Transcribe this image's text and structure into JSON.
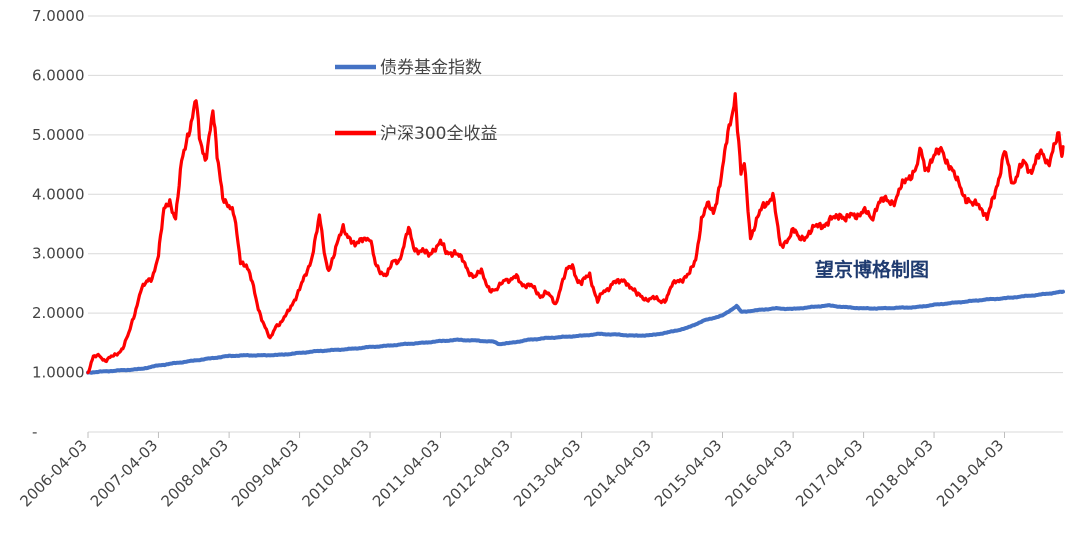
{
  "chart_data": {
    "type": "line",
    "title": "",
    "xlabel": "",
    "ylabel": "",
    "ylim": [
      0,
      7
    ],
    "y_ticks": [
      {
        "value": 0,
        "label": "-"
      },
      {
        "value": 1,
        "label": "1.0000"
      },
      {
        "value": 2,
        "label": "2.0000"
      },
      {
        "value": 3,
        "label": "3.0000"
      },
      {
        "value": 4,
        "label": "4.0000"
      },
      {
        "value": 5,
        "label": "5.0000"
      },
      {
        "value": 6,
        "label": "6.0000"
      },
      {
        "value": 7,
        "label": "7.0000"
      }
    ],
    "x_range": [
      "2006-04-03",
      "2020-01-31"
    ],
    "x_ticks": [
      "2006-04-03",
      "2007-04-03",
      "2008-04-03",
      "2009-04-03",
      "2010-04-03",
      "2011-04-03",
      "2012-04-03",
      "2013-04-03",
      "2014-04-03",
      "2015-04-03",
      "2016-04-03",
      "2017-04-03",
      "2018-04-03",
      "2019-04-03"
    ],
    "grid": true,
    "legend_position": "top-left",
    "annotation": "望京博格制图",
    "series": [
      {
        "name": "债券基金指数",
        "color": "#4472c4",
        "points": [
          [
            "2006-04-03",
            1.0
          ],
          [
            "2006-07-01",
            1.02
          ],
          [
            "2006-10-01",
            1.04
          ],
          [
            "2007-01-01",
            1.06
          ],
          [
            "2007-04-03",
            1.12
          ],
          [
            "2007-07-01",
            1.16
          ],
          [
            "2007-10-01",
            1.2
          ],
          [
            "2008-01-01",
            1.24
          ],
          [
            "2008-04-03",
            1.28
          ],
          [
            "2008-07-01",
            1.29
          ],
          [
            "2008-10-01",
            1.29
          ],
          [
            "2009-01-01",
            1.3
          ],
          [
            "2009-04-03",
            1.33
          ],
          [
            "2009-07-01",
            1.36
          ],
          [
            "2009-10-01",
            1.38
          ],
          [
            "2010-01-01",
            1.4
          ],
          [
            "2010-04-03",
            1.43
          ],
          [
            "2010-07-01",
            1.45
          ],
          [
            "2010-10-01",
            1.48
          ],
          [
            "2011-01-01",
            1.5
          ],
          [
            "2011-04-03",
            1.53
          ],
          [
            "2011-07-01",
            1.55
          ],
          [
            "2011-10-01",
            1.54
          ],
          [
            "2012-01-01",
            1.52
          ],
          [
            "2012-02-01",
            1.48
          ],
          [
            "2012-04-03",
            1.5
          ],
          [
            "2012-07-01",
            1.55
          ],
          [
            "2012-10-01",
            1.58
          ],
          [
            "2013-01-01",
            1.6
          ],
          [
            "2013-04-03",
            1.62
          ],
          [
            "2013-07-01",
            1.65
          ],
          [
            "2013-10-01",
            1.64
          ],
          [
            "2014-01-01",
            1.62
          ],
          [
            "2014-04-03",
            1.63
          ],
          [
            "2014-07-01",
            1.68
          ],
          [
            "2014-10-01",
            1.75
          ],
          [
            "2015-01-01",
            1.88
          ],
          [
            "2015-04-03",
            1.96
          ],
          [
            "2015-05-15",
            2.05
          ],
          [
            "2015-06-15",
            2.12
          ],
          [
            "2015-07-10",
            2.02
          ],
          [
            "2015-10-01",
            2.05
          ],
          [
            "2016-01-01",
            2.08
          ],
          [
            "2016-04-03",
            2.07
          ],
          [
            "2016-07-01",
            2.1
          ],
          [
            "2016-10-01",
            2.13
          ],
          [
            "2017-01-01",
            2.1
          ],
          [
            "2017-04-03",
            2.08
          ],
          [
            "2017-07-01",
            2.08
          ],
          [
            "2017-10-01",
            2.09
          ],
          [
            "2018-01-01",
            2.1
          ],
          [
            "2018-04-03",
            2.14
          ],
          [
            "2018-07-01",
            2.17
          ],
          [
            "2018-10-01",
            2.2
          ],
          [
            "2019-01-01",
            2.23
          ],
          [
            "2019-04-03",
            2.25
          ],
          [
            "2019-07-01",
            2.28
          ],
          [
            "2019-10-01",
            2.31
          ],
          [
            "2020-01-31",
            2.36
          ]
        ]
      },
      {
        "name": "沪深300全收益",
        "color": "#ff0000",
        "points": [
          [
            "2006-04-03",
            1.0
          ],
          [
            "2006-05-01",
            1.25
          ],
          [
            "2006-06-01",
            1.3
          ],
          [
            "2006-07-01",
            1.2
          ],
          [
            "2006-08-01",
            1.25
          ],
          [
            "2006-09-01",
            1.32
          ],
          [
            "2006-10-01",
            1.42
          ],
          [
            "2006-11-01",
            1.65
          ],
          [
            "2006-12-01",
            2.0
          ],
          [
            "2007-01-01",
            2.4
          ],
          [
            "2007-02-01",
            2.5
          ],
          [
            "2007-03-01",
            2.6
          ],
          [
            "2007-04-03",
            3.0
          ],
          [
            "2007-05-01",
            3.7
          ],
          [
            "2007-06-01",
            3.9
          ],
          [
            "2007-07-01",
            3.6
          ],
          [
            "2007-08-01",
            4.5
          ],
          [
            "2007-09-01",
            5.0
          ],
          [
            "2007-10-15",
            5.6
          ],
          [
            "2007-11-01",
            4.9
          ],
          [
            "2007-12-01",
            4.6
          ],
          [
            "2008-01-10",
            5.4
          ],
          [
            "2008-02-01",
            4.6
          ],
          [
            "2008-03-01",
            4.0
          ],
          [
            "2008-04-03",
            3.8
          ],
          [
            "2008-05-01",
            3.6
          ],
          [
            "2008-06-01",
            2.9
          ],
          [
            "2008-07-01",
            2.8
          ],
          [
            "2008-08-01",
            2.5
          ],
          [
            "2008-09-01",
            2.1
          ],
          [
            "2008-10-01",
            1.8
          ],
          [
            "2008-11-01",
            1.55
          ],
          [
            "2008-12-01",
            1.8
          ],
          [
            "2009-01-01",
            1.85
          ],
          [
            "2009-02-01",
            2.0
          ],
          [
            "2009-03-01",
            2.2
          ],
          [
            "2009-04-03",
            2.4
          ],
          [
            "2009-05-01",
            2.6
          ],
          [
            "2009-06-01",
            2.9
          ],
          [
            "2009-07-15",
            3.6
          ],
          [
            "2009-08-15",
            2.9
          ],
          [
            "2009-09-01",
            2.75
          ],
          [
            "2009-10-01",
            3.0
          ],
          [
            "2009-11-15",
            3.45
          ],
          [
            "2009-12-15",
            3.3
          ],
          [
            "2010-01-15",
            3.1
          ],
          [
            "2010-03-01",
            3.3
          ],
          [
            "2010-04-03",
            3.25
          ],
          [
            "2010-05-01",
            2.8
          ],
          [
            "2010-06-01",
            2.7
          ],
          [
            "2010-07-01",
            2.65
          ],
          [
            "2010-08-01",
            2.85
          ],
          [
            "2010-09-01",
            2.9
          ],
          [
            "2010-10-20",
            3.4
          ],
          [
            "2010-11-15",
            3.1
          ],
          [
            "2011-01-01",
            3.05
          ],
          [
            "2011-02-01",
            2.95
          ],
          [
            "2011-03-01",
            3.1
          ],
          [
            "2011-04-03",
            3.2
          ],
          [
            "2011-05-01",
            3.0
          ],
          [
            "2011-06-15",
            3.05
          ],
          [
            "2011-08-01",
            2.85
          ],
          [
            "2011-09-01",
            2.7
          ],
          [
            "2011-10-01",
            2.6
          ],
          [
            "2011-11-01",
            2.7
          ],
          [
            "2011-12-15",
            2.4
          ],
          [
            "2012-01-15",
            2.35
          ],
          [
            "2012-03-01",
            2.6
          ],
          [
            "2012-04-03",
            2.55
          ],
          [
            "2012-05-01",
            2.6
          ],
          [
            "2012-06-01",
            2.5
          ],
          [
            "2012-07-15",
            2.45
          ],
          [
            "2012-09-01",
            2.3
          ],
          [
            "2012-10-01",
            2.35
          ],
          [
            "2012-11-20",
            2.15
          ],
          [
            "2012-12-15",
            2.45
          ],
          [
            "2013-01-15",
            2.7
          ],
          [
            "2013-02-15",
            2.8
          ],
          [
            "2013-03-15",
            2.55
          ],
          [
            "2013-04-03",
            2.5
          ],
          [
            "2013-05-15",
            2.65
          ],
          [
            "2013-06-25",
            2.2
          ],
          [
            "2013-07-15",
            2.3
          ],
          [
            "2013-08-15",
            2.4
          ],
          [
            "2013-09-15",
            2.55
          ],
          [
            "2013-10-15",
            2.5
          ],
          [
            "2013-11-15",
            2.55
          ],
          [
            "2013-12-15",
            2.45
          ],
          [
            "2014-01-15",
            2.3
          ],
          [
            "2014-03-01",
            2.25
          ],
          [
            "2014-04-03",
            2.25
          ],
          [
            "2014-05-15",
            2.2
          ],
          [
            "2014-06-15",
            2.25
          ],
          [
            "2014-07-15",
            2.45
          ],
          [
            "2014-08-15",
            2.55
          ],
          [
            "2014-09-15",
            2.6
          ],
          [
            "2014-10-15",
            2.65
          ],
          [
            "2014-11-15",
            2.9
          ],
          [
            "2014-12-15",
            3.6
          ],
          [
            "2015-01-15",
            3.8
          ],
          [
            "2015-02-15",
            3.7
          ],
          [
            "2015-03-15",
            4.1
          ],
          [
            "2015-04-03",
            4.4
          ],
          [
            "2015-05-01",
            5.0
          ],
          [
            "2015-06-08",
            5.7
          ],
          [
            "2015-07-08",
            4.3
          ],
          [
            "2015-07-25",
            4.5
          ],
          [
            "2015-08-26",
            3.3
          ],
          [
            "2015-09-20",
            3.5
          ],
          [
            "2015-11-01",
            3.8
          ],
          [
            "2015-12-20",
            4.0
          ],
          [
            "2016-01-28",
            3.1
          ],
          [
            "2016-03-01",
            3.25
          ],
          [
            "2016-04-03",
            3.4
          ],
          [
            "2016-05-01",
            3.25
          ],
          [
            "2016-07-01",
            3.35
          ],
          [
            "2016-08-15",
            3.5
          ],
          [
            "2016-10-01",
            3.5
          ],
          [
            "2016-11-30",
            3.7
          ],
          [
            "2017-01-01",
            3.55
          ],
          [
            "2017-02-01",
            3.65
          ],
          [
            "2017-04-03",
            3.7
          ],
          [
            "2017-05-15",
            3.6
          ],
          [
            "2017-06-15",
            3.85
          ],
          [
            "2017-08-01",
            3.9
          ],
          [
            "2017-09-15",
            3.9
          ],
          [
            "2017-11-15",
            4.3
          ],
          [
            "2018-01-01",
            4.4
          ],
          [
            "2018-01-26",
            4.75
          ],
          [
            "2018-02-15",
            4.45
          ],
          [
            "2018-04-03",
            4.6
          ],
          [
            "2018-05-15",
            4.8
          ],
          [
            "2018-06-15",
            4.5
          ],
          [
            "2018-07-15",
            4.3
          ],
          [
            "2018-08-15",
            4.2
          ],
          [
            "2018-09-15",
            3.9
          ],
          [
            "2018-10-15",
            3.8
          ],
          [
            "2018-11-15",
            3.9
          ],
          [
            "2018-12-15",
            3.7
          ],
          [
            "2019-01-03",
            3.55
          ],
          [
            "2019-02-15",
            4.1
          ],
          [
            "2019-03-15",
            4.4
          ],
          [
            "2019-04-03",
            4.7
          ],
          [
            "2019-05-15",
            4.2
          ],
          [
            "2019-06-15",
            4.4
          ],
          [
            "2019-07-15",
            4.5
          ],
          [
            "2019-08-15",
            4.4
          ],
          [
            "2019-09-15",
            4.6
          ],
          [
            "2019-10-15",
            4.65
          ],
          [
            "2019-11-15",
            4.55
          ],
          [
            "2019-12-15",
            4.8
          ],
          [
            "2020-01-10",
            4.95
          ],
          [
            "2020-01-25",
            4.6
          ],
          [
            "2020-01-31",
            4.8
          ]
        ]
      }
    ]
  }
}
